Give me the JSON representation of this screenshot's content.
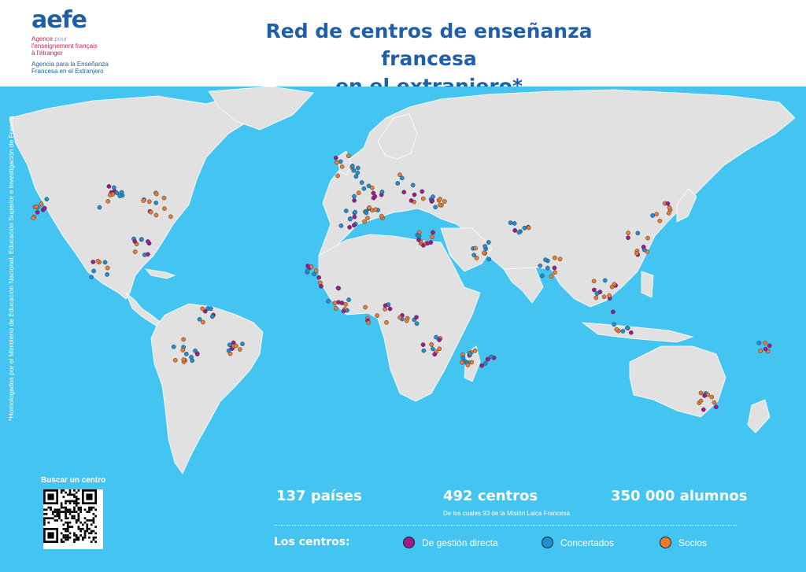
{
  "logo": {
    "wordmark": "aefe",
    "fr_line1": "Agence",
    "fr_pour": "pour",
    "fr_line2": "l'enseignement français",
    "fr_line3": "à l'étranger",
    "es_line1": "Agencia para la Enseñanza",
    "es_line2": "Francesa en el Extranjero"
  },
  "title": {
    "line1": "Red de centros de enseñanza francesa",
    "line2": "en el extranjero*"
  },
  "side_note": "*Homologados por el Ministerio de Educación Nacional, Educación Superior e Investigación de Francia",
  "qr_label": "Buscar un centro",
  "stats": {
    "countries": "137 países",
    "centers": "492 centros",
    "centers_note": "De los cuales 93 de la Misión Laica Francesa",
    "students": "350 000 alumnos"
  },
  "legend": {
    "title": "Los centros:",
    "items": [
      {
        "label": "De gestión directa",
        "color": "#a3198c"
      },
      {
        "label": "Concertados",
        "color": "#1f8fd1"
      },
      {
        "label": "Socios",
        "color": "#ef7a2b"
      }
    ]
  },
  "colors": {
    "ocean": "#44c5f1",
    "land": "#e1e1e1",
    "brand_blue": "#1f5fa8"
  }
}
